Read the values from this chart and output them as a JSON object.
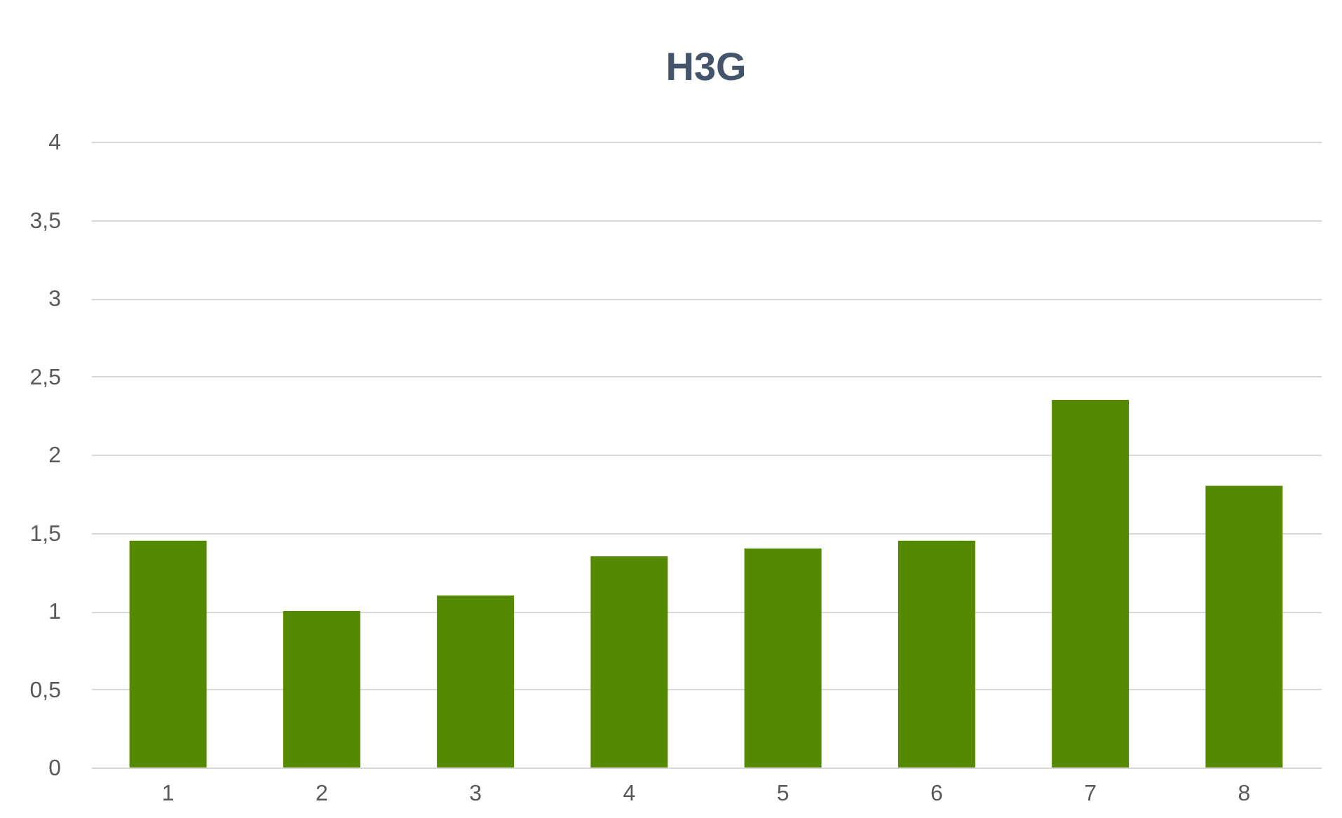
{
  "chart_data": {
    "type": "bar",
    "title": "H3G",
    "categories": [
      "1",
      "2",
      "3",
      "4",
      "5",
      "6",
      "7",
      "8"
    ],
    "values": [
      1.45,
      1.0,
      1.1,
      1.35,
      1.4,
      1.45,
      2.35,
      1.8
    ],
    "color": "#558a00",
    "ylim": [
      0,
      4
    ],
    "yticks": [
      0,
      {
        "value": 0.5,
        "label": "0,5"
      },
      1,
      {
        "value": 1.5,
        "label": "1,5"
      },
      2,
      {
        "value": 2.5,
        "label": "2,5"
      },
      3,
      {
        "value": 3.5,
        "label": "3,5"
      },
      4
    ],
    "grid": "y"
  }
}
